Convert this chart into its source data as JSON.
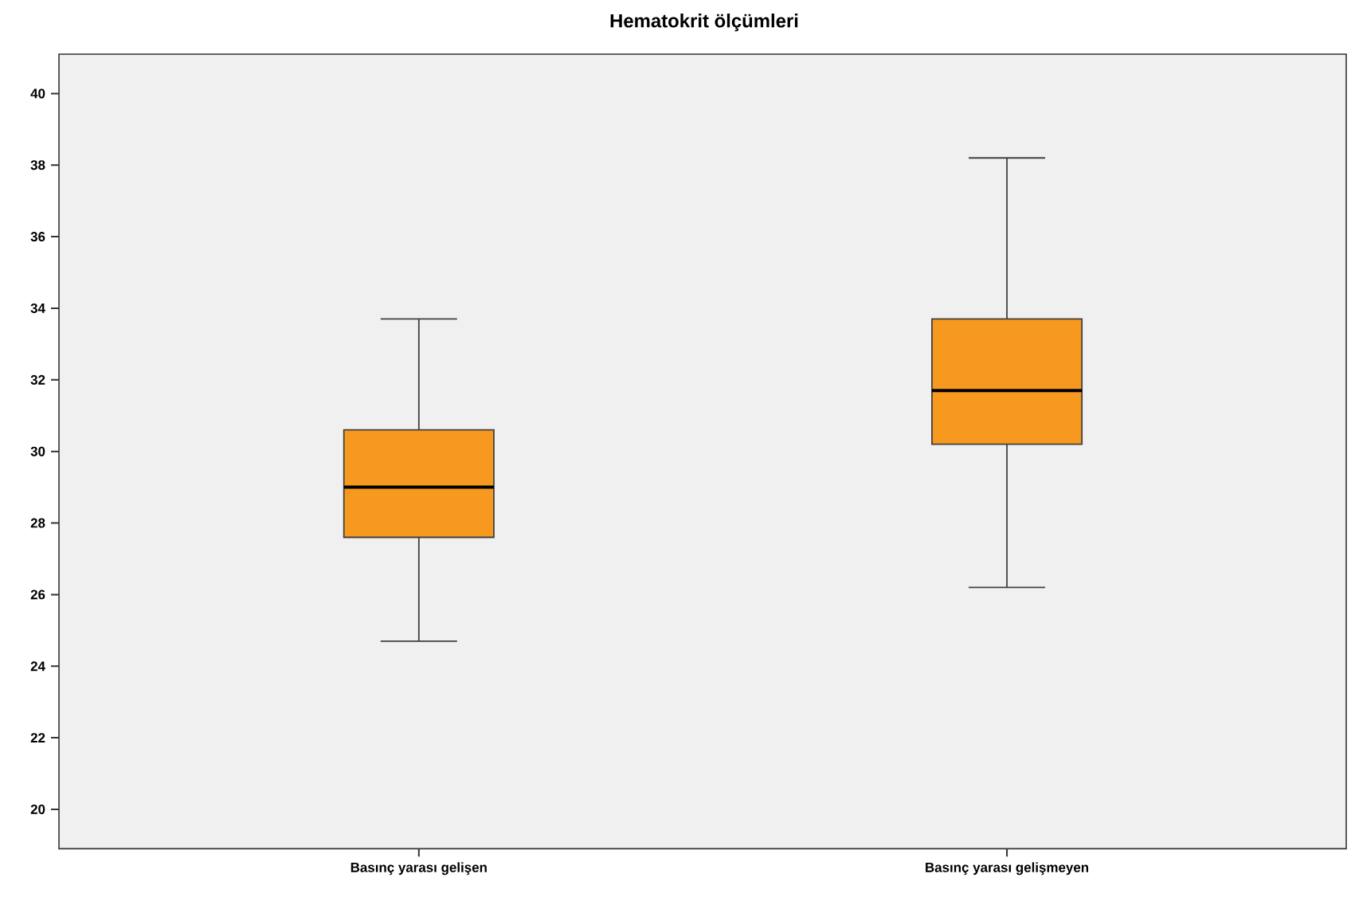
{
  "chart_data": {
    "type": "box",
    "title": "Hematokrit ölçümleri",
    "categories": [
      "Basınç yarası gelişen",
      "Basınç yarası gelişmeyen"
    ],
    "series": [
      {
        "color": "#f7991f",
        "boxes": [
          {
            "low": 24.7,
            "q1": 27.6,
            "median": 29.0,
            "q3": 30.6,
            "high": 33.7
          },
          {
            "low": 26.2,
            "q1": 30.2,
            "median": 31.7,
            "q3": 33.7,
            "high": 38.2
          }
        ]
      }
    ],
    "ylim": [
      18.9,
      41.1
    ],
    "yticks": [
      20,
      22,
      24,
      26,
      28,
      30,
      32,
      34,
      36,
      38,
      40
    ]
  }
}
